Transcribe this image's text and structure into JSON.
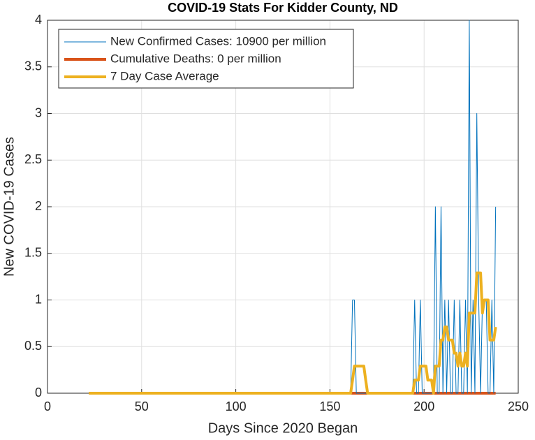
{
  "chart_data": {
    "type": "line",
    "title": "COVID-19 Stats For Kidder County, ND",
    "xlabel": "Days Since 2020 Began",
    "ylabel": "New COVID-19 Cases",
    "x": [
      22,
      160,
      161,
      162,
      163,
      164,
      165,
      166,
      167,
      168,
      169,
      170,
      171,
      172,
      173,
      174,
      175,
      176,
      177,
      178,
      179,
      180,
      181,
      182,
      183,
      184,
      185,
      186,
      187,
      188,
      189,
      190,
      191,
      192,
      193,
      194,
      195,
      196,
      197,
      198,
      199,
      200,
      201,
      202,
      203,
      204,
      205,
      206,
      207,
      208,
      209,
      210,
      211,
      212,
      213,
      214,
      215,
      216,
      217,
      218,
      219,
      220,
      221,
      222,
      223,
      224,
      225,
      226,
      227,
      228,
      229,
      230,
      231,
      232,
      233,
      234,
      235,
      236,
      237,
      238
    ],
    "series": [
      {
        "name": "New Confirmed Cases: 10900 per million",
        "color": "#0072bd",
        "width": 1,
        "values": [
          0,
          0,
          0,
          1,
          1,
          0,
          0,
          0,
          0,
          0,
          0,
          0,
          0,
          0,
          0,
          0,
          0,
          0,
          0,
          0,
          0,
          0,
          0,
          0,
          0,
          0,
          0,
          0,
          0,
          0,
          0,
          0,
          0,
          0,
          0,
          0,
          1,
          0,
          0,
          1,
          0,
          0,
          0,
          0,
          0,
          0,
          0,
          2,
          0,
          0,
          2,
          0,
          1,
          0,
          1,
          0,
          0,
          1,
          0,
          0,
          1,
          0,
          0,
          1,
          0,
          4,
          0,
          1,
          0,
          3,
          1,
          0,
          1,
          1,
          1,
          0,
          0,
          1,
          0,
          2
        ]
      },
      {
        "name": "Cumulative Deaths: 0 per million",
        "color": "#d95319",
        "width": 4,
        "values": [
          0,
          0,
          0,
          0,
          0,
          0,
          0,
          0,
          0,
          0,
          0,
          0,
          0,
          0,
          0,
          0,
          0,
          0,
          0,
          0,
          0,
          0,
          0,
          0,
          0,
          0,
          0,
          0,
          0,
          0,
          0,
          0,
          0,
          0,
          0,
          0,
          0,
          0,
          0,
          0,
          0,
          0,
          0,
          0,
          0,
          0,
          0,
          0,
          0,
          0,
          0,
          0,
          0,
          0,
          0,
          0,
          0,
          0,
          0,
          0,
          0,
          0,
          0,
          0,
          0,
          0,
          0,
          0,
          0,
          0,
          0,
          0,
          0,
          0,
          0,
          0,
          0,
          0,
          0,
          0
        ]
      },
      {
        "name": "7 Day Case Average",
        "color": "#edb120",
        "width": 4,
        "values": [
          0,
          0,
          0,
          0.14,
          0.29,
          0.29,
          0.29,
          0.29,
          0.29,
          0.29,
          0.14,
          0,
          0,
          0,
          0,
          0,
          0,
          0,
          0,
          0,
          0,
          0,
          0,
          0,
          0,
          0,
          0,
          0,
          0,
          0,
          0,
          0,
          0,
          0,
          0,
          0,
          0.14,
          0.14,
          0.14,
          0.29,
          0.29,
          0.29,
          0.29,
          0.14,
          0.14,
          0.14,
          0,
          0.29,
          0.29,
          0.29,
          0.57,
          0.57,
          0.71,
          0.71,
          0.57,
          0.57,
          0.57,
          0.43,
          0.43,
          0.29,
          0.43,
          0.29,
          0.29,
          0.43,
          0.29,
          0.86,
          0.86,
          0.86,
          0.86,
          1.29,
          1.29,
          1.29,
          0.86,
          1.0,
          1.0,
          1.0,
          0.57,
          0.57,
          0.57,
          0.71
        ]
      }
    ],
    "xlim": [
      0,
      250
    ],
    "xticks": [
      0,
      50,
      100,
      150,
      200,
      250
    ],
    "ylim": [
      0,
      4
    ],
    "yticks": [
      0,
      0.5,
      1,
      1.5,
      2,
      2.5,
      3,
      3.5,
      4
    ],
    "grid": true,
    "legend": "top-left"
  }
}
